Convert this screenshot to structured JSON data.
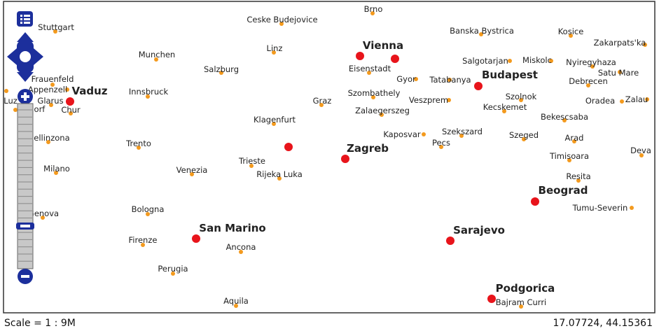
{
  "map": {
    "cities": [
      "Brno",
      "Ceske Budejovice",
      "Banska Bystrica",
      "Kosice",
      "Zakarpats'ka",
      "Stuttgart",
      "Linz",
      "Munchen",
      "Salgotarjan",
      "Miskolc",
      "Nyiregyhaza",
      "Salzburg",
      "Eisenstadt",
      "Satu Mare",
      "Gyor",
      "Tatabanya",
      "Frauenfeld",
      "Debrecen",
      "Appenzell",
      "Innsbruck",
      "Szombathely",
      "Szolnok",
      "Graz",
      "Veszprem",
      "Oradea",
      "Zalau",
      "Luz",
      "Glarus",
      "Altdorf",
      "Chur",
      "Kecskemet",
      "Zalaegerszeg",
      "Bekescsaba",
      "Klagenfurt",
      "Kaposvar",
      "Szekszard",
      "Szeged",
      "Arad",
      "Bellinzona",
      "Trento",
      "Pecs",
      "Deva",
      "Timisoara",
      "Trieste",
      "Venezia",
      "Milano",
      "Rijeka Luka",
      "Resita",
      "Tumu-Severin",
      "Genova",
      "Bologna",
      "Firenze",
      "Ancona",
      "Perugia",
      "Aquila",
      "Bajram Curri"
    ],
    "capitals": [
      "Vaduz",
      "Vienna",
      "Budapest",
      "Zagreb",
      "Beograd",
      "San Marino",
      "Sarajevo",
      "Podgorica"
    ]
  },
  "status": {
    "scale": "Scale = 1 : 9M",
    "coordinates": "17.07724, 44.15361"
  }
}
